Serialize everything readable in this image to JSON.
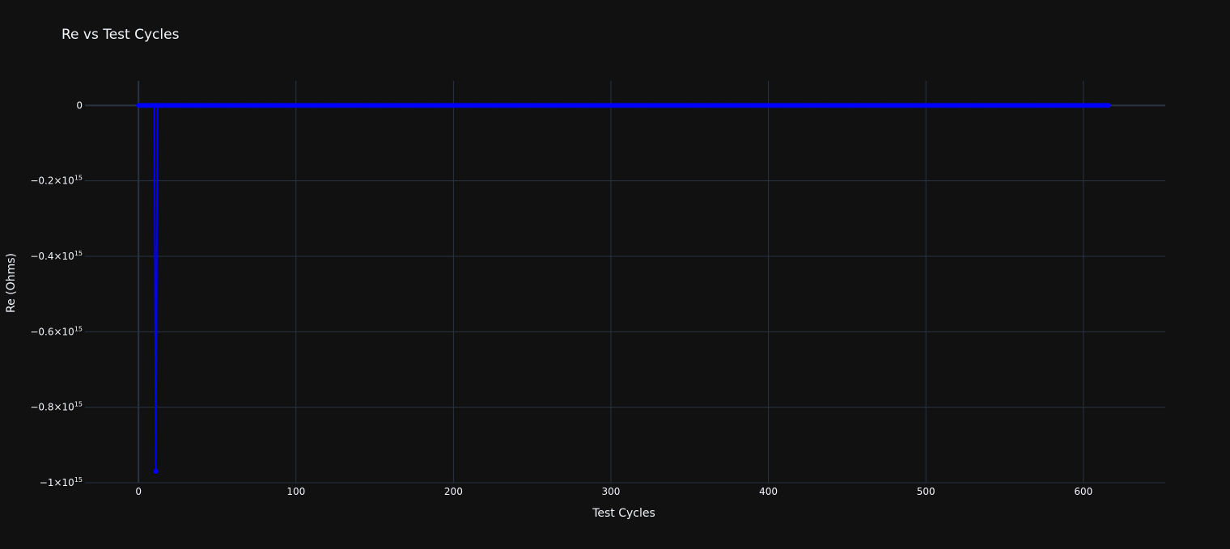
{
  "chart_data": {
    "type": "line",
    "title": "Re vs Test Cycles",
    "xlabel": "Test Cycles",
    "ylabel": "Re (Ohms)",
    "xlim": [
      -34,
      652
    ],
    "ylim": [
      -1000000000000000.0,
      65000000000000.0
    ],
    "x_ticks": [
      0,
      100,
      200,
      300,
      400,
      500,
      600
    ],
    "x_tick_labels": [
      "0",
      "100",
      "200",
      "300",
      "400",
      "500",
      "600"
    ],
    "y_ticks": [
      0,
      -200000000000000.0,
      -400000000000000.0,
      -600000000000000.0,
      -800000000000000.0,
      -1000000000000000.0
    ],
    "y_tick_labels": [
      {
        "base": "0",
        "exp": ""
      },
      {
        "base": "−0.2×10",
        "exp": "15"
      },
      {
        "base": "−0.4×10",
        "exp": "15"
      },
      {
        "base": "−0.6×10",
        "exp": "15"
      },
      {
        "base": "−0.8×10",
        "exp": "15"
      },
      {
        "base": "−1×10",
        "exp": "15"
      }
    ],
    "grid": true,
    "series": [
      {
        "color": "#0000ff",
        "mode": "lines+markers",
        "points": [
          {
            "x": 0,
            "y": 0
          },
          {
            "x": 10,
            "y": 0
          },
          {
            "x": 11,
            "y": -970000000000000.0
          },
          {
            "x": 12,
            "y": 0
          },
          {
            "x": 616,
            "y": 0
          }
        ],
        "dense_x_range": [
          0,
          616
        ],
        "dense_y": 0
      }
    ]
  },
  "colors": {
    "background": "#111111",
    "grid": "#283442",
    "zeroline": "#283442",
    "text": "#f2f5fa",
    "series": "#0000ff"
  }
}
